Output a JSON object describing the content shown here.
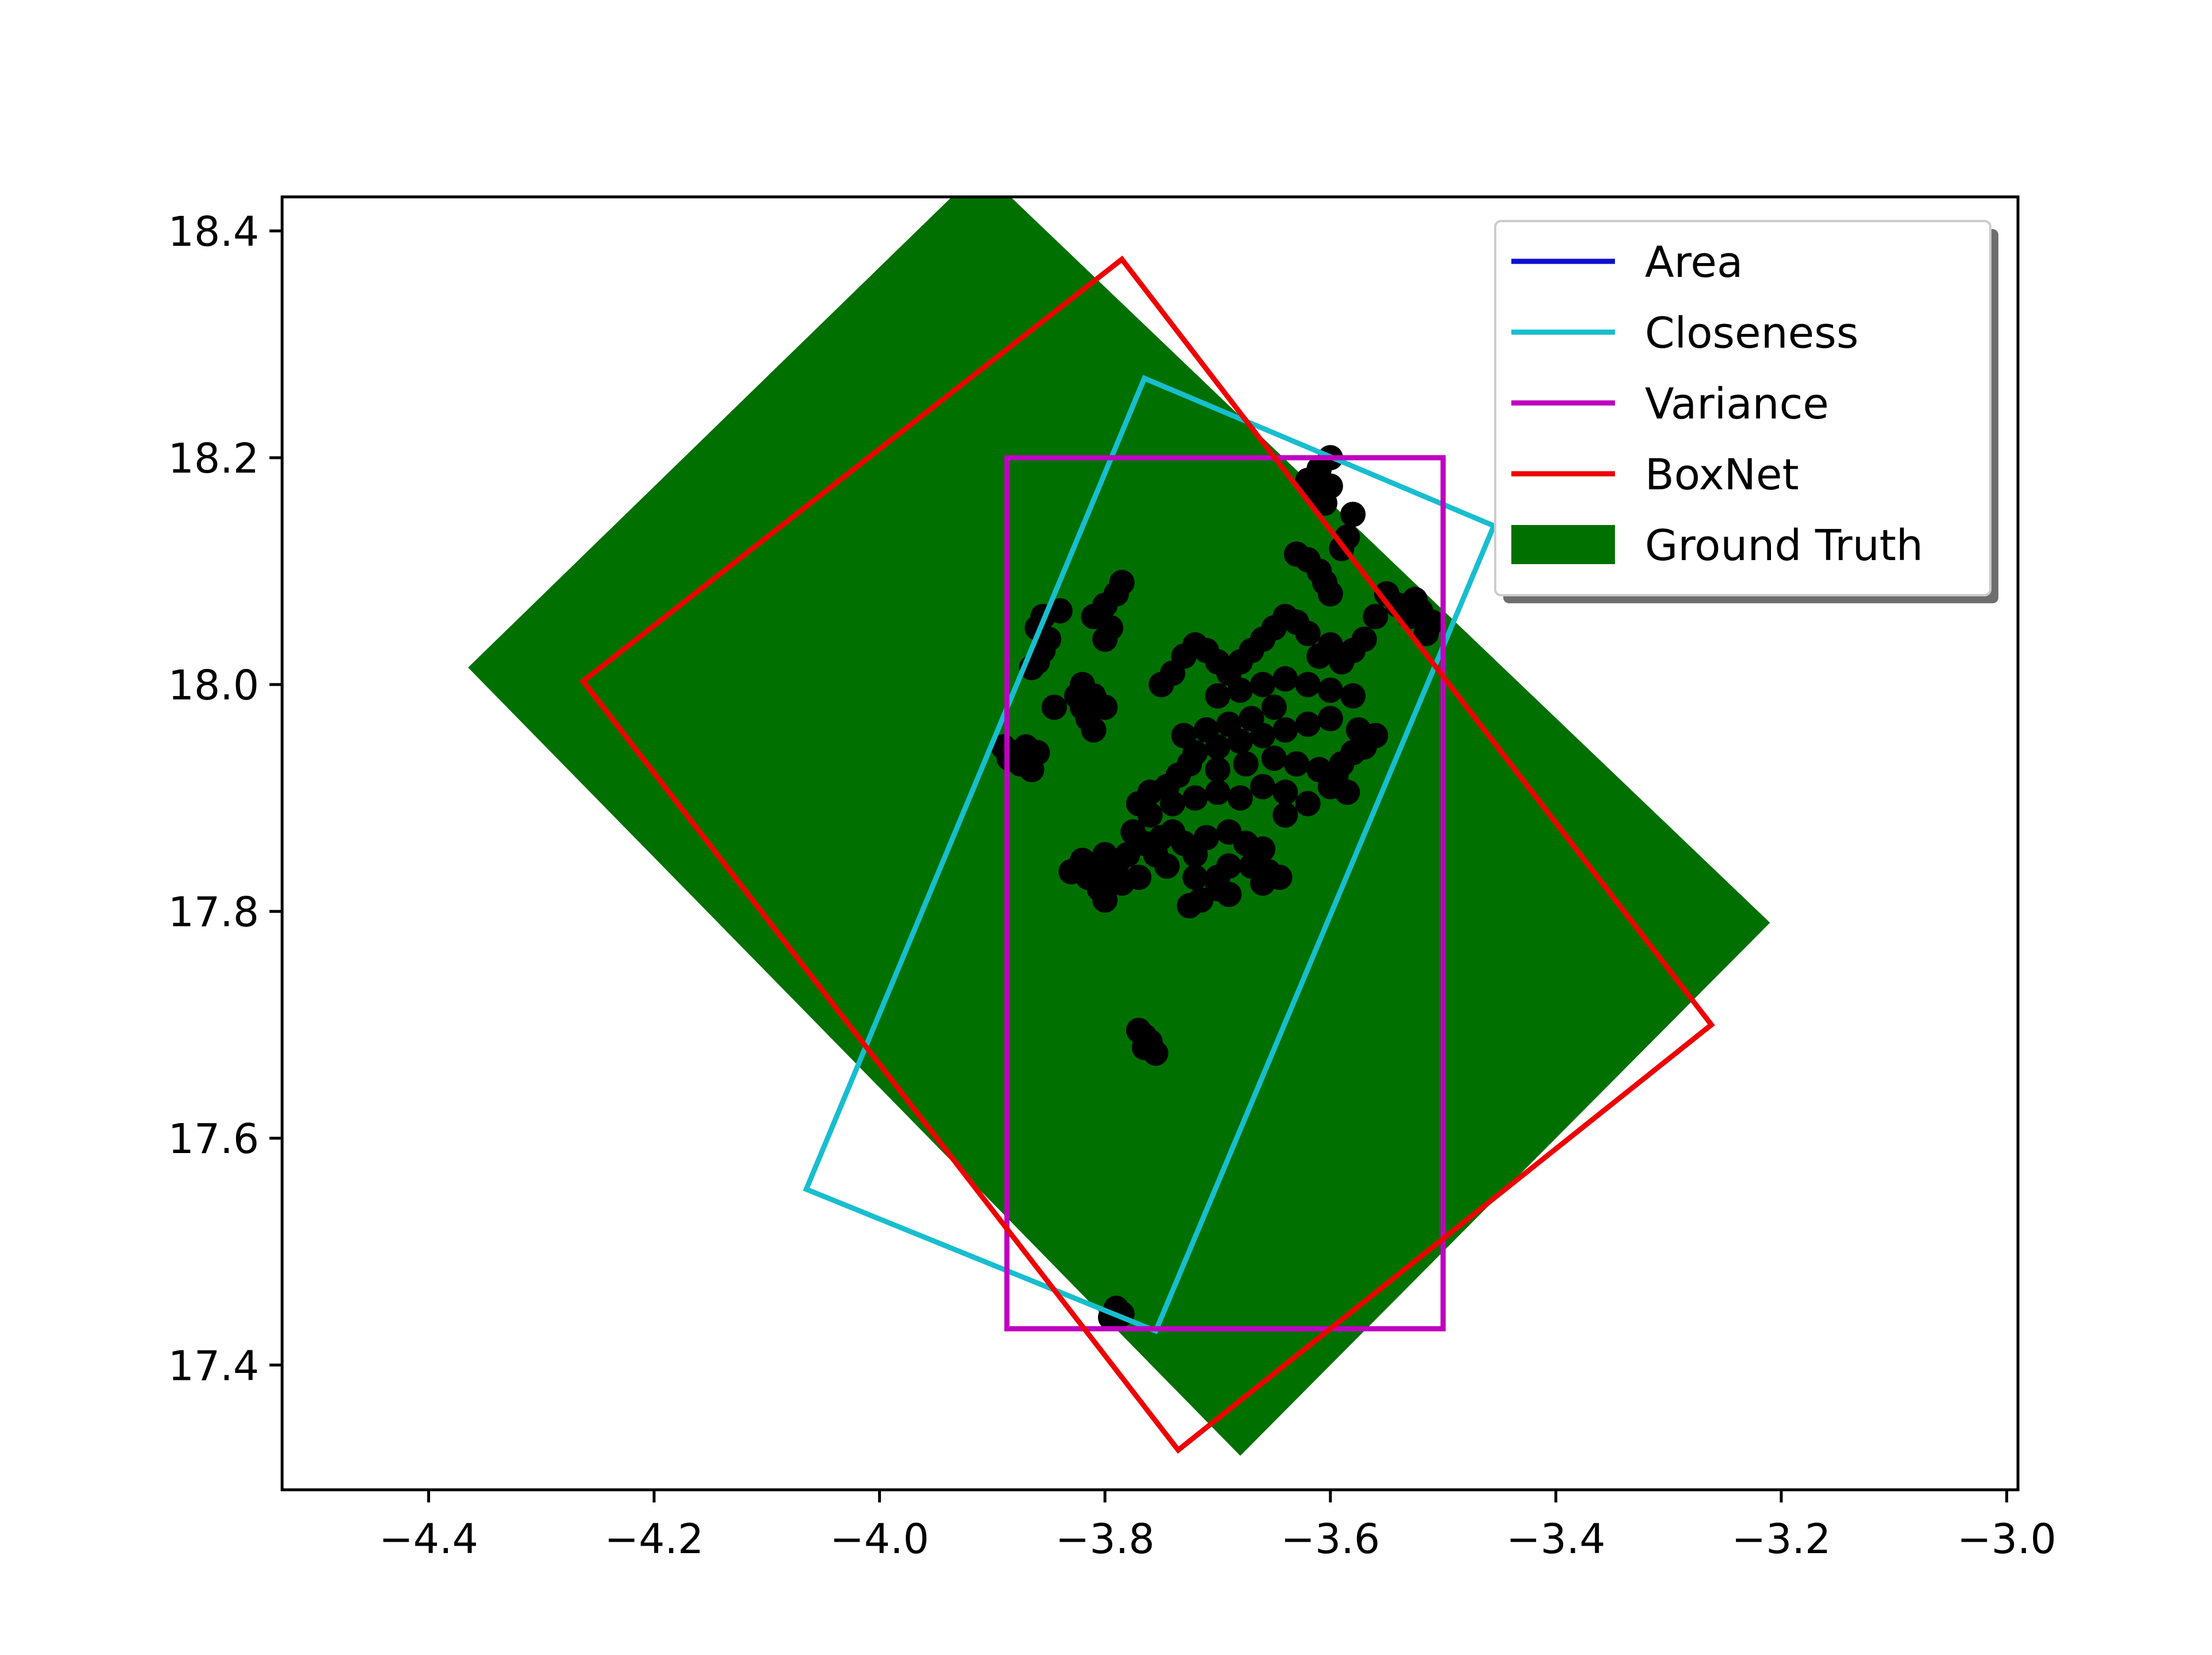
{
  "chart_data": {
    "type": "scatter",
    "xlim": [
      -4.53,
      -2.99
    ],
    "ylim": [
      17.29,
      18.43
    ],
    "xticks": [
      -4.4,
      -4.2,
      -4.0,
      -3.8,
      -3.6,
      -3.4,
      -3.2,
      -3.0
    ],
    "yticks": [
      17.4,
      17.6,
      17.8,
      18.0,
      18.2,
      18.4
    ],
    "xtick_labels": [
      "−4.4",
      "−4.2",
      "−4.0",
      "−3.8",
      "−3.6",
      "−3.4",
      "−3.2",
      "−3.0"
    ],
    "ytick_labels": [
      "17.4",
      "17.6",
      "17.8",
      "18.0",
      "18.2",
      "18.4"
    ],
    "grid": false,
    "legend_position": "top-right",
    "series": [
      {
        "name": "Area",
        "kind": "polygon-outline",
        "color": "#1010d0",
        "points": []
      },
      {
        "name": "Closeness",
        "kind": "polygon-outline",
        "color": "#17becf",
        "points": [
          [
            -3.765,
            18.27
          ],
          [
            -3.455,
            18.14
          ],
          [
            -3.755,
            17.43
          ],
          [
            -4.065,
            17.555
          ]
        ]
      },
      {
        "name": "Variance",
        "kind": "polygon-outline",
        "color": "#bf00bf",
        "points": [
          [
            -3.887,
            18.2
          ],
          [
            -3.5,
            18.2
          ],
          [
            -3.5,
            17.432
          ],
          [
            -3.887,
            17.432
          ]
        ]
      },
      {
        "name": "BoxNet",
        "kind": "polygon-outline",
        "color": "#ee0000",
        "points": [
          [
            -3.785,
            18.375
          ],
          [
            -3.262,
            17.7
          ],
          [
            -3.735,
            17.325
          ],
          [
            -4.263,
            18.003
          ]
        ]
      },
      {
        "name": "Ground Truth",
        "kind": "polygon-fill",
        "color": "#007000",
        "points": [
          [
            -3.91,
            18.455
          ],
          [
            -3.21,
            17.79
          ],
          [
            -3.68,
            17.32
          ],
          [
            -4.365,
            18.015
          ]
        ]
      }
    ],
    "scatter_color": "#000000",
    "scatter_points": [
      [
        -3.61,
        18.19
      ],
      [
        -3.6,
        18.2
      ],
      [
        -3.615,
        18.17
      ],
      [
        -3.605,
        18.16
      ],
      [
        -3.62,
        18.18
      ],
      [
        -3.6,
        18.175
      ],
      [
        -3.58,
        18.15
      ],
      [
        -3.585,
        18.13
      ],
      [
        -3.59,
        18.12
      ],
      [
        -3.62,
        18.11
      ],
      [
        -3.61,
        18.1
      ],
      [
        -3.605,
        18.09
      ],
      [
        -3.6,
        18.08
      ],
      [
        -3.63,
        18.115
      ],
      [
        -3.55,
        18.08
      ],
      [
        -3.54,
        18.07
      ],
      [
        -3.53,
        18.06
      ],
      [
        -3.52,
        18.065
      ],
      [
        -3.51,
        18.055
      ],
      [
        -3.525,
        18.075
      ],
      [
        -3.515,
        18.045
      ],
      [
        -3.56,
        18.06
      ],
      [
        -3.57,
        18.04
      ],
      [
        -3.58,
        18.03
      ],
      [
        -3.59,
        18.02
      ],
      [
        -3.6,
        18.035
      ],
      [
        -3.61,
        18.025
      ],
      [
        -3.62,
        18.045
      ],
      [
        -3.63,
        18.055
      ],
      [
        -3.64,
        18.06
      ],
      [
        -3.65,
        18.05
      ],
      [
        -3.66,
        18.04
      ],
      [
        -3.67,
        18.03
      ],
      [
        -3.68,
        18.02
      ],
      [
        -3.69,
        18.01
      ],
      [
        -3.7,
        18.02
      ],
      [
        -3.71,
        18.03
      ],
      [
        -3.72,
        18.035
      ],
      [
        -3.73,
        18.025
      ],
      [
        -3.74,
        18.01
      ],
      [
        -3.75,
        18.0
      ],
      [
        -3.7,
        17.99
      ],
      [
        -3.68,
        17.995
      ],
      [
        -3.66,
        18.0
      ],
      [
        -3.64,
        18.005
      ],
      [
        -3.62,
        18.0
      ],
      [
        -3.6,
        17.995
      ],
      [
        -3.58,
        17.99
      ],
      [
        -3.65,
        17.98
      ],
      [
        -3.67,
        17.97
      ],
      [
        -3.69,
        17.965
      ],
      [
        -3.71,
        17.96
      ],
      [
        -3.73,
        17.955
      ],
      [
        -3.72,
        17.94
      ],
      [
        -3.7,
        17.945
      ],
      [
        -3.68,
        17.95
      ],
      [
        -3.66,
        17.955
      ],
      [
        -3.64,
        17.96
      ],
      [
        -3.62,
        17.965
      ],
      [
        -3.6,
        17.97
      ],
      [
        -3.575,
        17.96
      ],
      [
        -3.56,
        17.955
      ],
      [
        -3.57,
        17.945
      ],
      [
        -3.58,
        17.94
      ],
      [
        -3.59,
        17.93
      ],
      [
        -3.61,
        17.925
      ],
      [
        -3.6,
        17.91
      ],
      [
        -3.585,
        17.905
      ],
      [
        -3.595,
        17.92
      ],
      [
        -3.63,
        17.93
      ],
      [
        -3.65,
        17.935
      ],
      [
        -3.675,
        17.93
      ],
      [
        -3.7,
        17.925
      ],
      [
        -3.725,
        17.93
      ],
      [
        -3.735,
        17.92
      ],
      [
        -3.745,
        17.91
      ],
      [
        -3.76,
        17.905
      ],
      [
        -3.77,
        17.895
      ],
      [
        -3.74,
        17.895
      ],
      [
        -3.72,
        17.9
      ],
      [
        -3.7,
        17.905
      ],
      [
        -3.68,
        17.9
      ],
      [
        -3.66,
        17.91
      ],
      [
        -3.64,
        17.905
      ],
      [
        -3.62,
        17.895
      ],
      [
        -3.64,
        17.885
      ],
      [
        -3.76,
        17.885
      ],
      [
        -3.775,
        17.87
      ],
      [
        -3.765,
        17.86
      ],
      [
        -3.75,
        17.865
      ],
      [
        -3.74,
        17.87
      ],
      [
        -3.73,
        17.86
      ],
      [
        -3.72,
        17.85
      ],
      [
        -3.71,
        17.865
      ],
      [
        -3.69,
        17.87
      ],
      [
        -3.675,
        17.86
      ],
      [
        -3.66,
        17.855
      ],
      [
        -3.69,
        17.84
      ],
      [
        -3.7,
        17.83
      ],
      [
        -3.72,
        17.83
      ],
      [
        -3.745,
        17.84
      ],
      [
        -3.755,
        17.85
      ],
      [
        -3.67,
        17.84
      ],
      [
        -3.655,
        17.835
      ],
      [
        -3.645,
        17.83
      ],
      [
        -3.66,
        17.825
      ],
      [
        -3.7,
        17.82
      ],
      [
        -3.715,
        17.81
      ],
      [
        -3.725,
        17.805
      ],
      [
        -3.69,
        17.815
      ],
      [
        -3.8,
        17.85
      ],
      [
        -3.81,
        17.84
      ],
      [
        -3.815,
        17.83
      ],
      [
        -3.82,
        17.845
      ],
      [
        -3.805,
        17.82
      ],
      [
        -3.795,
        17.83
      ],
      [
        -3.785,
        17.825
      ],
      [
        -3.8,
        17.81
      ],
      [
        -3.83,
        17.835
      ],
      [
        -3.79,
        17.84
      ],
      [
        -3.78,
        17.85
      ],
      [
        -3.77,
        17.83
      ],
      [
        -3.79,
        18.08
      ],
      [
        -3.8,
        18.07
      ],
      [
        -3.785,
        18.09
      ],
      [
        -3.81,
        18.06
      ],
      [
        -3.795,
        18.05
      ],
      [
        -3.8,
        18.04
      ],
      [
        -3.84,
        18.065
      ],
      [
        -3.855,
        18.06
      ],
      [
        -3.86,
        18.05
      ],
      [
        -3.85,
        18.04
      ],
      [
        -3.855,
        18.03
      ],
      [
        -3.86,
        18.02
      ],
      [
        -3.865,
        18.015
      ],
      [
        -3.82,
        18.0
      ],
      [
        -3.81,
        17.99
      ],
      [
        -3.8,
        17.98
      ],
      [
        -3.815,
        17.97
      ],
      [
        -3.82,
        17.98
      ],
      [
        -3.825,
        17.99
      ],
      [
        -3.81,
        17.96
      ],
      [
        -3.845,
        17.98
      ],
      [
        -3.89,
        17.945
      ],
      [
        -3.88,
        17.94
      ],
      [
        -3.87,
        17.945
      ],
      [
        -3.885,
        17.935
      ],
      [
        -3.875,
        17.93
      ],
      [
        -3.86,
        17.94
      ],
      [
        -3.865,
        17.925
      ],
      [
        -3.77,
        17.695
      ],
      [
        -3.765,
        17.69
      ],
      [
        -3.76,
        17.685
      ],
      [
        -3.755,
        17.675
      ],
      [
        -3.765,
        17.68
      ],
      [
        -3.79,
        17.45
      ],
      [
        -3.785,
        17.445
      ],
      [
        -3.795,
        17.442
      ]
    ]
  }
}
